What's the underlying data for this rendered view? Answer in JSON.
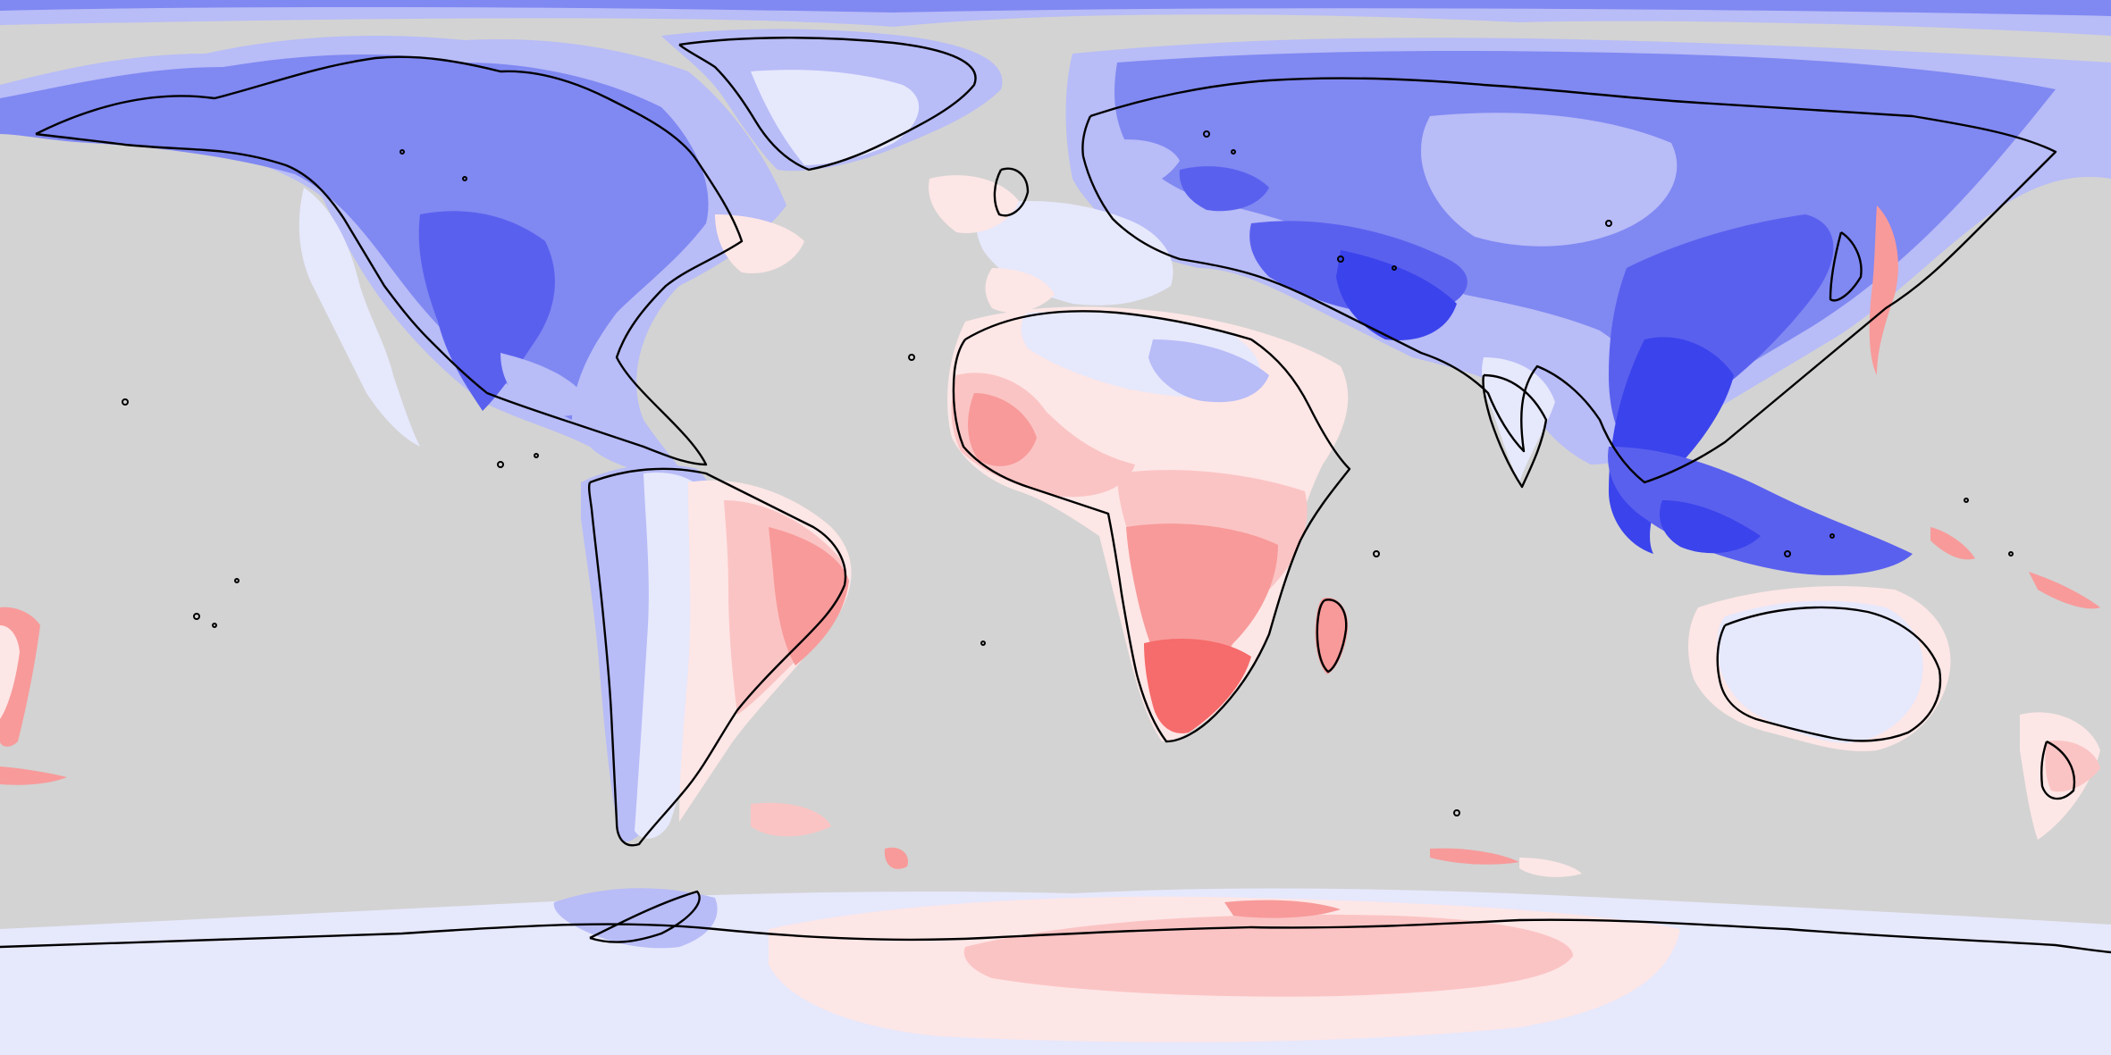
{
  "map": {
    "projection": "equirectangular",
    "background_color": "#d3d3d3",
    "coastline_color": "#000000",
    "palette": {
      "blue_strong": "#3b43ec",
      "blue_dark": "#5a60ee",
      "blue_mid": "#8088f2",
      "blue_light": "#b8bcf7",
      "blue_pale": "#e6e8fc",
      "red_pale": "#fde6e6",
      "red_light": "#fbc4c4",
      "red_mid": "#f89a9a",
      "red_strong": "#f66b6b"
    },
    "regions": [
      {
        "name": "north-america",
        "anomaly": "negative"
      },
      {
        "name": "greenland",
        "anomaly": "negative"
      },
      {
        "name": "eurasia",
        "anomaly": "strong-negative"
      },
      {
        "name": "south-asia",
        "anomaly": "strong-negative"
      },
      {
        "name": "africa",
        "anomaly": "positive"
      },
      {
        "name": "south-america-east",
        "anomaly": "positive"
      },
      {
        "name": "south-america-west",
        "anomaly": "negative"
      },
      {
        "name": "australia",
        "anomaly": "slight-negative"
      },
      {
        "name": "madagascar",
        "anomaly": "positive"
      },
      {
        "name": "antarctica-east",
        "anomaly": "positive"
      },
      {
        "name": "antarctica-west",
        "anomaly": "slight-negative"
      }
    ]
  }
}
